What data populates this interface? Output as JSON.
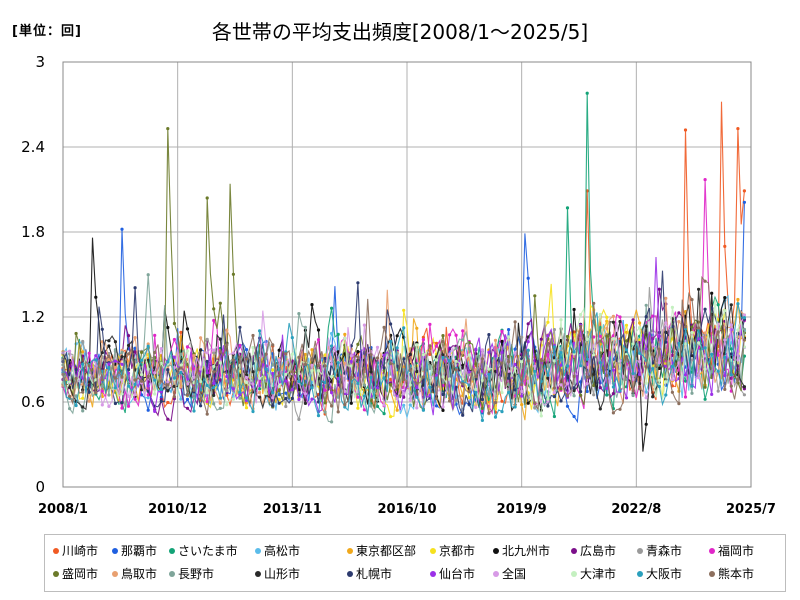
{
  "unit_label": "[単位：回]",
  "chart_data": {
    "type": "line",
    "title": "各世帯の平均支出頻度[2008/1～2025/5]",
    "xlabel": "",
    "ylabel": "",
    "ylim": [
      0,
      3
    ],
    "yticks": [
      "0",
      "0.6",
      "1.2",
      "1.8",
      "2.4",
      "3"
    ],
    "xticks": [
      "2008/1",
      "2010/12",
      "2013/11",
      "2016/10",
      "2019/9",
      "2022/8",
      "2025/7"
    ],
    "x_range": [
      "2008/1",
      "2025/7"
    ],
    "grid": true,
    "legend_position": "bottom",
    "series": [
      {
        "name": "川崎市",
        "color": "#f05a23"
      },
      {
        "name": "那覇市",
        "color": "#1f5fe0"
      },
      {
        "name": "さいたま市",
        "color": "#13a377"
      },
      {
        "name": "高松市",
        "color": "#5bbcea"
      },
      {
        "name": "東京都区部",
        "color": "#f0a81c"
      },
      {
        "name": "京都市",
        "color": "#f6e11e"
      },
      {
        "name": "北九州市",
        "color": "#111111"
      },
      {
        "name": "広島市",
        "color": "#7b0f8a"
      },
      {
        "name": "青森市",
        "color": "#9a9a9a"
      },
      {
        "name": "福岡市",
        "color": "#e026c8"
      },
      {
        "name": "盛岡市",
        "color": "#6b7a2a"
      },
      {
        "name": "鳥取市",
        "color": "#e8a070"
      },
      {
        "name": "長野市",
        "color": "#7fa59a"
      },
      {
        "name": "山形市",
        "color": "#2a2a2a"
      },
      {
        "name": "札幌市",
        "color": "#2c3a6e"
      },
      {
        "name": "仙台市",
        "color": "#9b30e8"
      },
      {
        "name": "全国",
        "color": "#d79ae6"
      },
      {
        "name": "大津市",
        "color": "#c4f0c0"
      },
      {
        "name": "大阪市",
        "color": "#2aa0bd"
      },
      {
        "name": "熊本市",
        "color": "#8c6f5e"
      }
    ],
    "highlights": [
      {
        "series": "盛岡市",
        "x": "2010/9",
        "y": 2.53
      },
      {
        "series": "盛岡市",
        "x": "2011/9",
        "y": 2.04
      },
      {
        "series": "盛岡市",
        "x": "2012/4",
        "y": 2.14
      },
      {
        "series": "那覇市",
        "x": "2009/7",
        "y": 1.82
      },
      {
        "series": "さいたま市",
        "x": "2021/5",
        "y": 2.78
      },
      {
        "series": "さいたま市",
        "x": "2020/11",
        "y": 1.97
      },
      {
        "series": "那覇市",
        "x": "2019/10",
        "y": 1.79
      },
      {
        "series": "川崎市",
        "x": "2021/5",
        "y": 2.09
      },
      {
        "series": "川崎市",
        "x": "2023/11",
        "y": 2.52
      },
      {
        "series": "川崎市",
        "x": "2024/10",
        "y": 2.72
      },
      {
        "series": "川崎市",
        "x": "2025/3",
        "y": 2.53
      },
      {
        "series": "川崎市",
        "x": "2025/5",
        "y": 2.09
      },
      {
        "series": "那覇市",
        "x": "2025/5",
        "y": 2.01
      },
      {
        "series": "福岡市",
        "x": "2024/5",
        "y": 2.17
      },
      {
        "series": "北九州市",
        "x": "2008/10",
        "y": 1.76
      },
      {
        "series": "北九州市",
        "x": "2022/10",
        "y": 0.25
      }
    ]
  }
}
